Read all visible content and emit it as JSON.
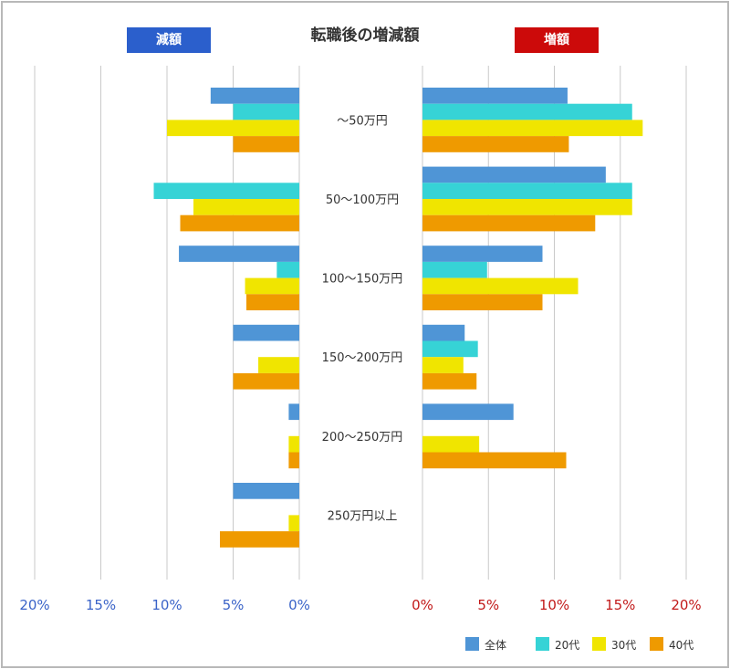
{
  "chart_data": {
    "type": "bar",
    "title": "転職後の増減額",
    "categories": [
      "～50万円",
      "50～100万円",
      "100～150万円",
      "150～200万円",
      "200～250万円",
      "250万円以上"
    ],
    "left_panel": {
      "label": "減額",
      "label_color": "#2b5fcc",
      "tick_labels": [
        "20%",
        "15%",
        "10%",
        "5%",
        "0%"
      ],
      "tick_color": "#3a63c8",
      "xlim": [
        0,
        20
      ],
      "direction": "reversed",
      "series": [
        {
          "name": "全体",
          "values": [
            6.7,
            0,
            9.1,
            5.0,
            0.8,
            5.0
          ]
        },
        {
          "name": "20代",
          "values": [
            5.0,
            11.0,
            1.7,
            0,
            0,
            0
          ]
        },
        {
          "name": "30代",
          "values": [
            10.0,
            8.0,
            4.1,
            3.1,
            0.8,
            0.8
          ]
        },
        {
          "name": "40代",
          "values": [
            5.0,
            9.0,
            4.0,
            5.0,
            0.8,
            6.0
          ]
        }
      ]
    },
    "right_panel": {
      "label": "増額",
      "label_color": "#cc0a0a",
      "tick_labels": [
        "0%",
        "5%",
        "10%",
        "15%",
        "20%"
      ],
      "tick_color": "#c21a1a",
      "xlim": [
        0,
        20
      ],
      "series": [
        {
          "name": "全体",
          "values": [
            11.0,
            13.9,
            9.1,
            3.2,
            6.9,
            0
          ]
        },
        {
          "name": "20代",
          "values": [
            15.9,
            15.9,
            4.9,
            4.2,
            0,
            0
          ]
        },
        {
          "name": "30代",
          "values": [
            16.7,
            15.9,
            11.8,
            3.1,
            4.3,
            0
          ]
        },
        {
          "name": "40代",
          "values": [
            11.1,
            13.1,
            9.1,
            4.1,
            10.9,
            0
          ]
        }
      ]
    },
    "legend": {
      "placement": "bottom-right",
      "items": [
        {
          "name": "全体",
          "color": "#4f95d6"
        },
        {
          "name": "20代",
          "color": "#36d3d6"
        },
        {
          "name": "30代",
          "color": "#f0e500"
        },
        {
          "name": "40代",
          "color": "#ef9a00"
        }
      ]
    },
    "grid": true
  }
}
